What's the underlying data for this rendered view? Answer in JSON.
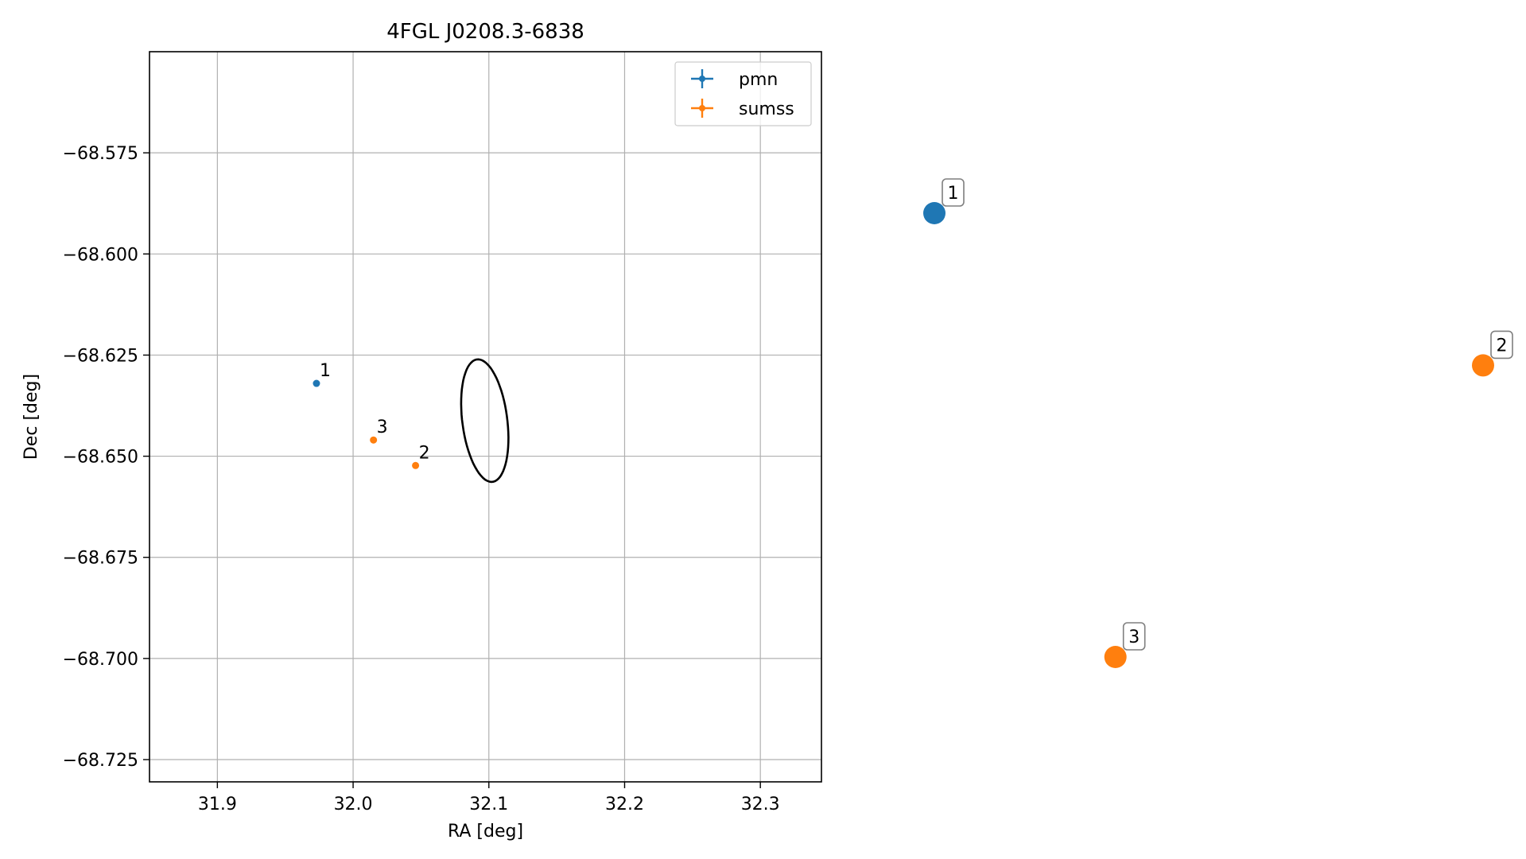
{
  "chart_data": {
    "type": "scatter",
    "title": "4FGL J0208.3-6838",
    "xlabel": "RA [deg]",
    "ylabel": "Dec [deg]",
    "xlim": [
      31.85,
      32.345
    ],
    "ylim": [
      -68.7305,
      -68.55
    ],
    "xticks": [
      31.9,
      32.0,
      32.1,
      32.2,
      32.3
    ],
    "yticks": [
      -68.575,
      -68.6,
      -68.625,
      -68.65,
      -68.675,
      -68.7,
      -68.725
    ],
    "xtick_labels": [
      "31.9",
      "32.0",
      "32.1",
      "32.2",
      "32.3"
    ],
    "ytick_labels": [
      "−68.575",
      "−68.600",
      "−68.625",
      "−68.650",
      "−68.675",
      "−68.700",
      "−68.725"
    ],
    "grid": true,
    "legend_position": "top-right",
    "series": [
      {
        "name": "pmn",
        "color": "#1f77b4",
        "points": [
          {
            "label": "1",
            "x": 31.973,
            "y": -68.632
          }
        ]
      },
      {
        "name": "sumss",
        "color": "#ff7f0e",
        "points": [
          {
            "label": "2",
            "x": 32.046,
            "y": -68.6523
          },
          {
            "label": "3",
            "x": 32.015,
            "y": -68.646
          }
        ]
      }
    ],
    "ellipse": {
      "center_x": 32.097,
      "center_y": -68.6412,
      "semi_x": 0.1342,
      "semi_y": 0.0592,
      "angle_deg": 99.5,
      "color": "#000000"
    }
  },
  "side_panel": {
    "points": [
      {
        "label": "1",
        "color": "#1f77b4",
        "u": 0.0,
        "v": 1.0
      },
      {
        "label": "2",
        "color": "#ff7f0e",
        "u": 1.0,
        "v": 0.657
      },
      {
        "label": "3",
        "color": "#ff7f0e",
        "u": 0.33,
        "v": 0.0
      }
    ]
  }
}
